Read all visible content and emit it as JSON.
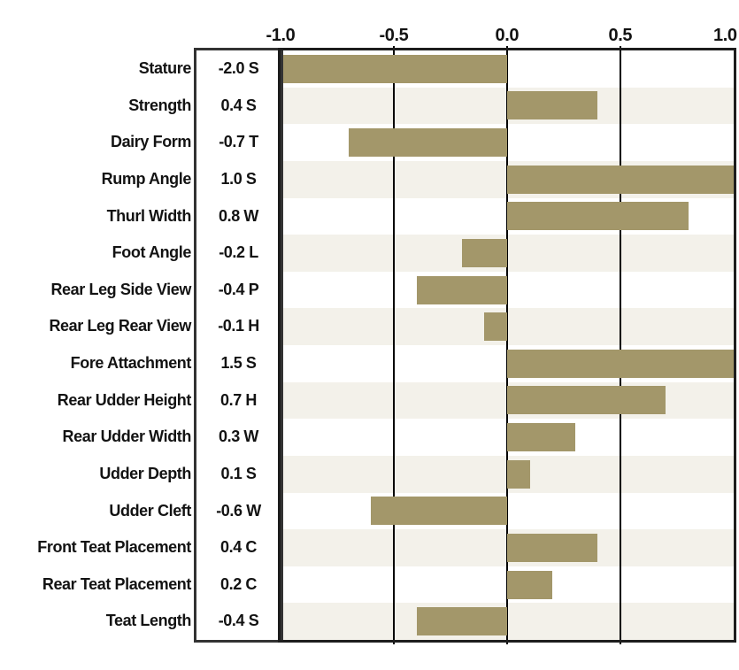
{
  "chart_data": {
    "type": "bar",
    "orientation": "horizontal",
    "title": "",
    "xlabel": "",
    "ylabel": "",
    "xlim": [
      -1.0,
      1.0
    ],
    "axis_ticks": [
      {
        "value": -1.0,
        "label": "-1.0"
      },
      {
        "value": -0.5,
        "label": "-0.5"
      },
      {
        "value": 0.0,
        "label": "0.0"
      },
      {
        "value": 0.5,
        "label": "0.5"
      },
      {
        "value": 1.0,
        "label": "1.0"
      }
    ],
    "gridline_values": [
      -0.5,
      0.0,
      0.5
    ],
    "legend": "none",
    "note": "bars are clipped to the -1.0 to 1.0 axis range",
    "rows": [
      {
        "trait": "Stature",
        "value": -2.0,
        "value_label": "-2.0 S"
      },
      {
        "trait": "Strength",
        "value": 0.4,
        "value_label": "0.4 S"
      },
      {
        "trait": "Dairy Form",
        "value": -0.7,
        "value_label": "-0.7 T"
      },
      {
        "trait": "Rump Angle",
        "value": 1.0,
        "value_label": "1.0 S"
      },
      {
        "trait": "Thurl Width",
        "value": 0.8,
        "value_label": "0.8 W"
      },
      {
        "trait": "Foot Angle",
        "value": -0.2,
        "value_label": "-0.2 L"
      },
      {
        "trait": "Rear Leg Side View",
        "value": -0.4,
        "value_label": "-0.4 P"
      },
      {
        "trait": "Rear Leg Rear View",
        "value": -0.1,
        "value_label": "-0.1 H"
      },
      {
        "trait": "Fore Attachment",
        "value": 1.5,
        "value_label": "1.5 S"
      },
      {
        "trait": "Rear Udder Height",
        "value": 0.7,
        "value_label": "0.7 H"
      },
      {
        "trait": "Rear Udder Width",
        "value": 0.3,
        "value_label": "0.3 W"
      },
      {
        "trait": "Udder Depth",
        "value": 0.1,
        "value_label": "0.1 S"
      },
      {
        "trait": "Udder Cleft",
        "value": -0.6,
        "value_label": "-0.6 W"
      },
      {
        "trait": "Front Teat Placement",
        "value": 0.4,
        "value_label": "0.4 C"
      },
      {
        "trait": "Rear Teat Placement",
        "value": 0.2,
        "value_label": "0.2 C"
      },
      {
        "trait": "Teat Length",
        "value": -0.4,
        "value_label": "-0.4 S"
      }
    ],
    "colors": {
      "bar": "#a3976a",
      "row_stripe": "#f3f1ea",
      "row_plain": "#ffffff",
      "gridline": "#000000",
      "value_box_border": "#333333",
      "plot_border": "#1d1d1d",
      "text": "#131313",
      "background": "#ffffff"
    }
  }
}
